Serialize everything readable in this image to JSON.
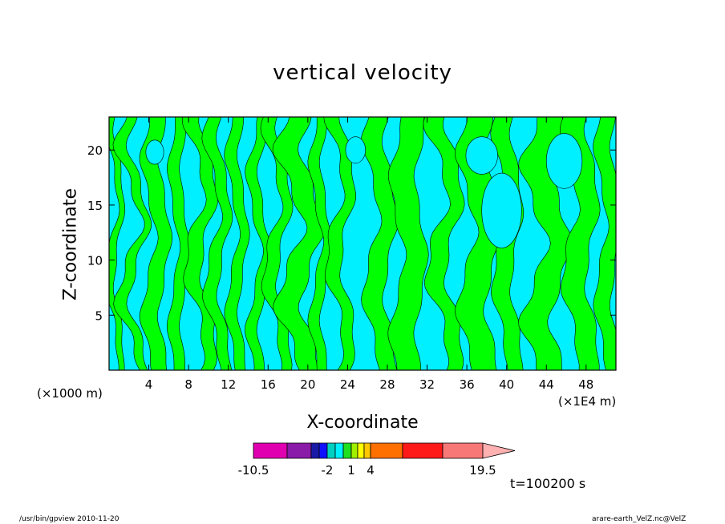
{
  "chart_data": {
    "type": "heatmap",
    "title": "vertical velocity",
    "xlabel": "X-coordinate",
    "ylabel": "Z-coordinate",
    "x_unit": "(×1000 m)",
    "x_unit_right": "(×1E4 m)",
    "xlim": [
      0,
      51
    ],
    "ylim": [
      0,
      23
    ],
    "x_ticks": [
      4,
      8,
      12,
      16,
      20,
      24,
      28,
      32,
      36,
      40,
      44,
      48
    ],
    "y_ticks": [
      5,
      10,
      15,
      20
    ],
    "colorbar": {
      "levels": [
        -10.5,
        -7.5,
        -4.5,
        -3,
        -2,
        -1,
        0,
        1,
        2,
        3,
        4,
        7,
        10.5,
        14.5,
        19.5
      ],
      "colors": [
        "#e000b0",
        "#8a1aa8",
        "#1a1aa8",
        "#1010ff",
        "#00d0c0",
        "#00f0ff",
        "#20e020",
        "#a0f000",
        "#ffff00",
        "#ffc800",
        "#ff7000",
        "#ff1a1a",
        "#f87878",
        "#ffb0b0"
      ],
      "tick_labels": [
        "-10.5",
        "-2",
        "1",
        "4",
        "19.5"
      ],
      "tick_values": [
        -10.5,
        -2,
        1,
        4,
        19.5
      ]
    },
    "field_colors": {
      "positive": "#00ff00",
      "negative": "#00f0ff"
    },
    "time_label": "t=100200 s"
  },
  "footer": {
    "left": "/usr/bin/gpview  2010-11-20",
    "right": "arare-earth_VelZ.nc@VelZ"
  }
}
